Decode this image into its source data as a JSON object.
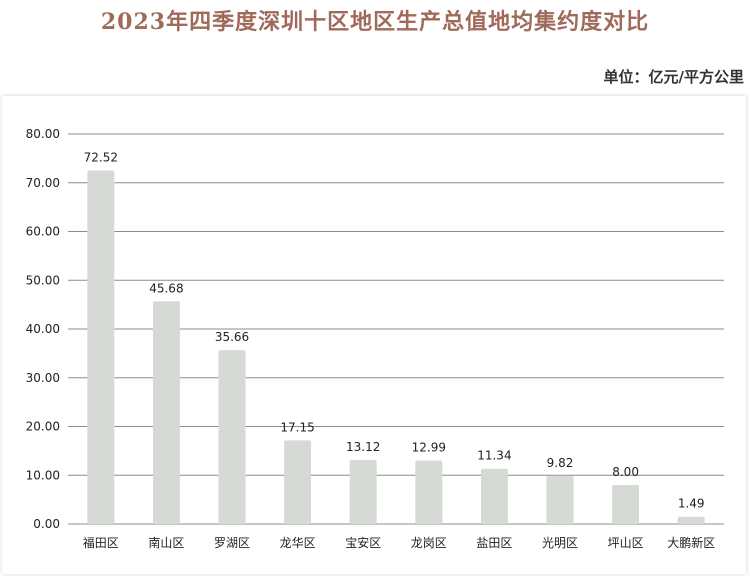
{
  "header": {
    "title": "2023年四季度深圳十区地区生产总值地均集约度对比",
    "unit": "单位：亿元/平方公里"
  },
  "colors": {
    "bar": "#d6dad5",
    "grid": "#8c8c8c",
    "title": "#a06a5a"
  },
  "chart_data": {
    "type": "bar",
    "title": "2023年四季度深圳十区地区生产总值地均集约度对比",
    "ylabel": "单位：亿元/平方公里",
    "xlabel": "",
    "categories": [
      "福田区",
      "南山区",
      "罗湖区",
      "龙华区",
      "宝安区",
      "龙岗区",
      "盐田区",
      "光明区",
      "坪山区",
      "大鹏新区"
    ],
    "values": [
      72.52,
      45.68,
      35.66,
      17.15,
      13.12,
      12.99,
      11.34,
      9.82,
      8.0,
      1.49
    ],
    "value_labels": [
      "72.52",
      "45.68",
      "35.66",
      "17.15",
      "13.12",
      "12.99",
      "11.34",
      "9.82",
      "8.00",
      "1.49"
    ],
    "yticks": [
      "0.00",
      "10.00",
      "20.00",
      "30.00",
      "40.00",
      "50.00",
      "60.00",
      "70.00",
      "80.00"
    ],
    "ylim": [
      0,
      80
    ],
    "grid": true,
    "legend": "none"
  }
}
